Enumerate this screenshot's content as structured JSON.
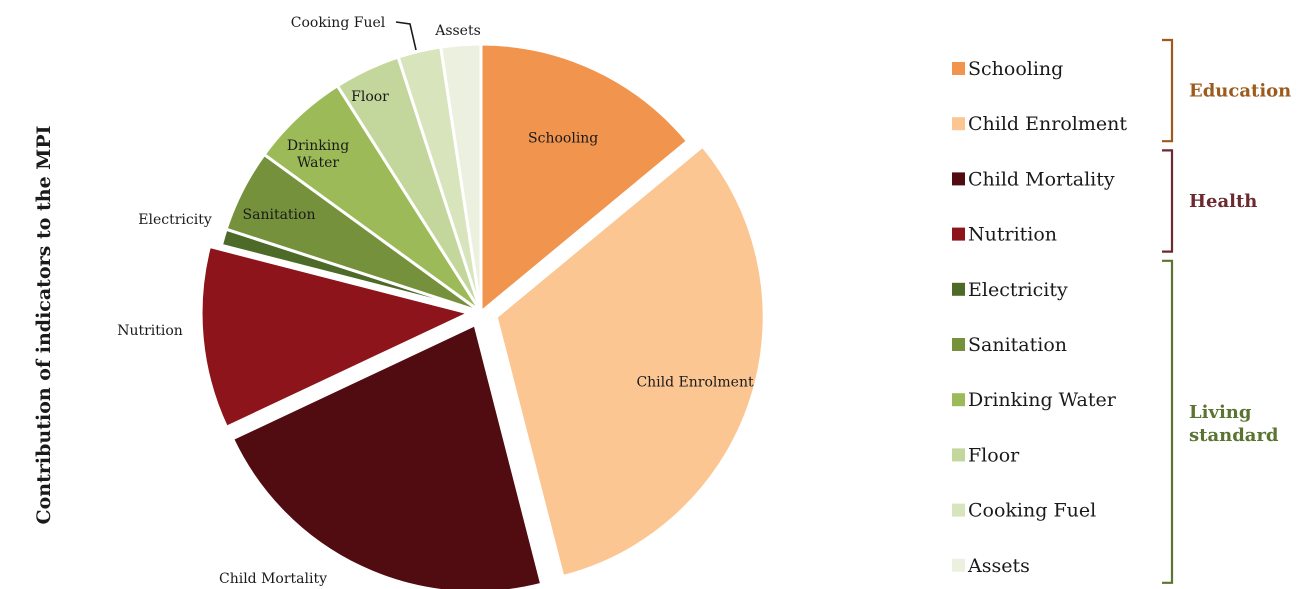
{
  "chart_data": {
    "type": "pie",
    "title": "",
    "ylabel": "Contribution of indicators to the MPI",
    "legend_position": "right",
    "slices": [
      {
        "label": "Schooling",
        "value": 14,
        "color": "#F0944E",
        "label_inside": true,
        "legend": "Schooling"
      },
      {
        "label": "Child Enrolment",
        "value": 32,
        "color": "#FCC693",
        "label_inside": true,
        "legend": "Child Enrolment"
      },
      {
        "label": "Child Mortality",
        "value": 22,
        "color": "#510C11",
        "label_inside": false,
        "legend": "Child Mortality"
      },
      {
        "label": "Nutrition",
        "value": 11,
        "color": "#8C141A",
        "label_inside": false,
        "legend": "Nutrition"
      },
      {
        "label": "Electricity",
        "value": 1,
        "color": "#4E6A29",
        "label_inside": false,
        "legend": "Electricity"
      },
      {
        "label": "Sanitation",
        "value": 5,
        "color": "#76913C",
        "label_inside": true,
        "legend": "Sanitation"
      },
      {
        "label": "Drinking Water",
        "value": 6,
        "color": "#9CBB58",
        "label_inside": true,
        "legend": "Drinking Water"
      },
      {
        "label": "Floor",
        "value": 4,
        "color": "#C3D69B",
        "label_inside": true,
        "legend": "Floor"
      },
      {
        "label": "Cooking Fuel",
        "value": 2.6,
        "color": "#D8E4BC",
        "label_inside": false,
        "legend": "Cooking Fuel"
      },
      {
        "label": "Assets",
        "value": 2.4,
        "color": "#EBF1DE",
        "label_inside": false,
        "legend": "Assets"
      }
    ],
    "groups": [
      {
        "label": "Education",
        "color": "#9C5A1D",
        "members": [
          0,
          1
        ]
      },
      {
        "label": "Health",
        "color": "#6B2A2F",
        "members": [
          2,
          3
        ]
      },
      {
        "label": "Living standard",
        "color": "#5B7431",
        "members": [
          4,
          5,
          6,
          7,
          8,
          9
        ]
      }
    ]
  }
}
